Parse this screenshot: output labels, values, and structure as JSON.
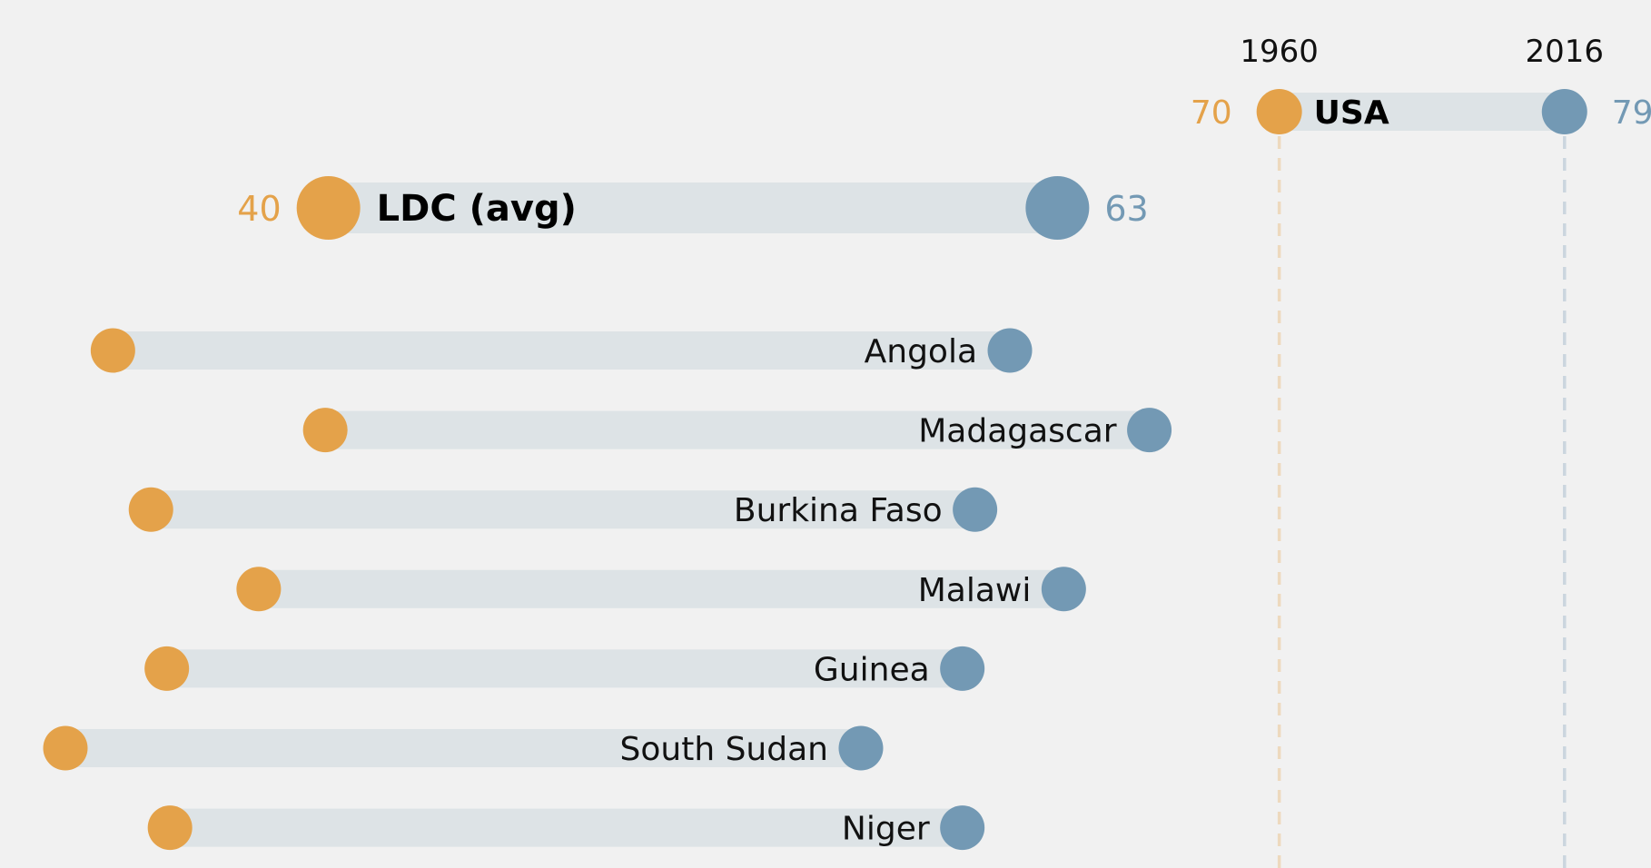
{
  "chart_data": {
    "type": "dumbbell",
    "series": [
      {
        "name": "1960",
        "color": "#e4a24a"
      },
      {
        "name": "2016",
        "color": "#7399b4"
      }
    ],
    "reference": {
      "name": "USA",
      "v1960": 70,
      "v2016": 79,
      "label_1960": "70",
      "label_2016": "79"
    },
    "average": {
      "name": "LDC (avg)",
      "v1960": 40,
      "v2016": 63,
      "label_1960": "40",
      "label_2016": "63"
    },
    "countries": [
      {
        "name": "Angola",
        "v1960": 33.2,
        "v2016": 61.5
      },
      {
        "name": "Madagascar",
        "v1960": 39.9,
        "v2016": 65.9
      },
      {
        "name": "Burkina Faso",
        "v1960": 34.4,
        "v2016": 60.4
      },
      {
        "name": "Malawi",
        "v1960": 37.8,
        "v2016": 63.2
      },
      {
        "name": "Guinea",
        "v1960": 34.9,
        "v2016": 60.0
      },
      {
        "name": "South Sudan",
        "v1960": 31.7,
        "v2016": 56.8
      },
      {
        "name": "Niger",
        "v1960": 35.0,
        "v2016": 60.0
      }
    ]
  }
}
